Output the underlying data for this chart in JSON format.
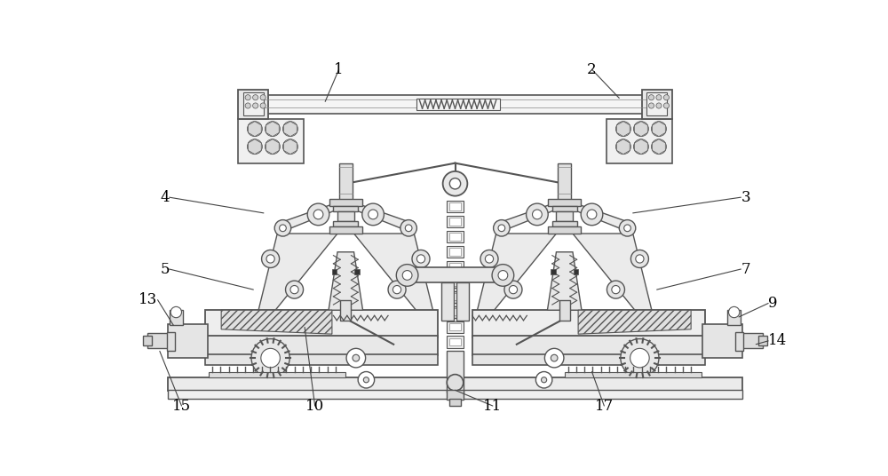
{
  "bg_color": "#ffffff",
  "lc": "#555555",
  "lc2": "#888888",
  "fig_width": 10.0,
  "fig_height": 5.36,
  "dpi": 100,
  "label_fontsize": 12,
  "leader_color": "#444444"
}
